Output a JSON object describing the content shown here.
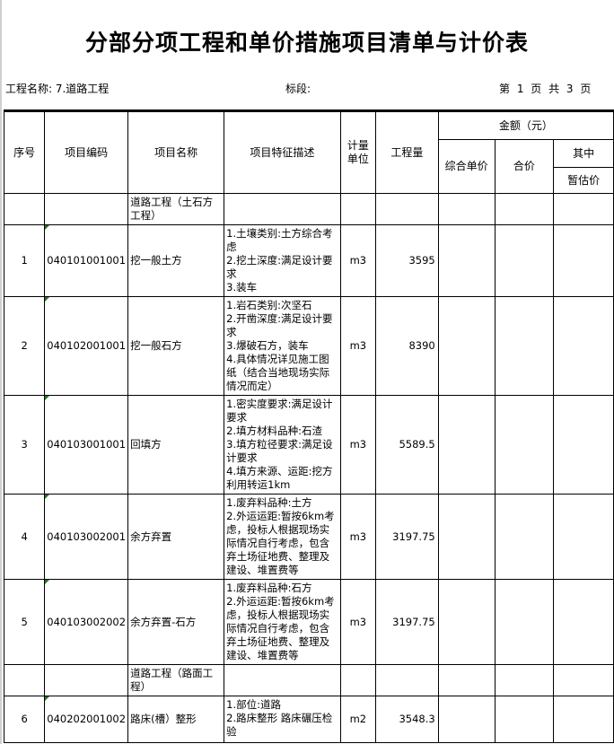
{
  "title": "分部分项工程和单价措施项目清单与计价表",
  "project_name_label": "工程名称: 7.道路工程",
  "section_label": "标段:",
  "page_info": "第 1 页 共 3 页",
  "headers": {
    "seq": "序号",
    "code": "项目编码",
    "name": "项目名称",
    "desc": "项目特征描述",
    "unit": "计量\n单位",
    "qty": "工程量",
    "amount": "金额（元）",
    "unit_price": "综合单价",
    "total": "合价",
    "of_which": "其中",
    "provisional": "暂估价"
  },
  "rows": [
    {
      "seq": "",
      "code": "",
      "name": "道路工程（土石方工程）",
      "desc": "",
      "unit": "",
      "qty": ""
    },
    {
      "seq": "1",
      "code": "040101001001",
      "name": "挖一般土方",
      "desc": "1.土壤类别:土方综合考虑\n2.挖土深度:满足设计要求\n3.装车",
      "unit": "m3",
      "qty": "3595"
    },
    {
      "seq": "2",
      "code": "040102001001",
      "name": "挖一般石方",
      "desc": "1.岩石类别:次坚石\n2.开凿深度:满足设计要求\n3.爆破石方，装车\n4.具体情况详见施工图纸（结合当地现场实际情况而定）",
      "unit": "m3",
      "qty": "8390"
    },
    {
      "seq": "3",
      "code": "040103001001",
      "name": "回填方",
      "desc": "1.密实度要求:满足设计要求\n2.填方材料品种:石渣\n3.填方粒径要求:满足设计要求\n4.填方来源、运距:挖方利用转运1km",
      "unit": "m3",
      "qty": "5589.5"
    },
    {
      "seq": "4",
      "code": "040103002001",
      "name": "余方弃置",
      "desc": "1.废弃料品种:土方\n2.外运运距:暂按6km考虑，投标人根据现场实际情况自行考虑，包含弃土场征地费、整理及建设、堆置费等",
      "unit": "m3",
      "qty": "3197.75"
    },
    {
      "seq": "5",
      "code": "040103002002",
      "name": "余方弃置-石方",
      "desc": "1.废弃料品种:石方\n2.外运运距:暂按6km考虑，投标人根据现场实际情况自行考虑，包含弃土场征地费、整理及建设、堆置费等",
      "unit": "m3",
      "qty": "3197.75"
    },
    {
      "seq": "",
      "code": "",
      "name": "道路工程（路面工程）",
      "desc": "",
      "unit": "",
      "qty": ""
    },
    {
      "seq": "6",
      "code": "040202001002",
      "name": "路床(槽）整形",
      "desc": "1.部位:道路\n2.路床整形 路床碾压检验",
      "unit": "m2",
      "qty": "3548.3"
    }
  ]
}
